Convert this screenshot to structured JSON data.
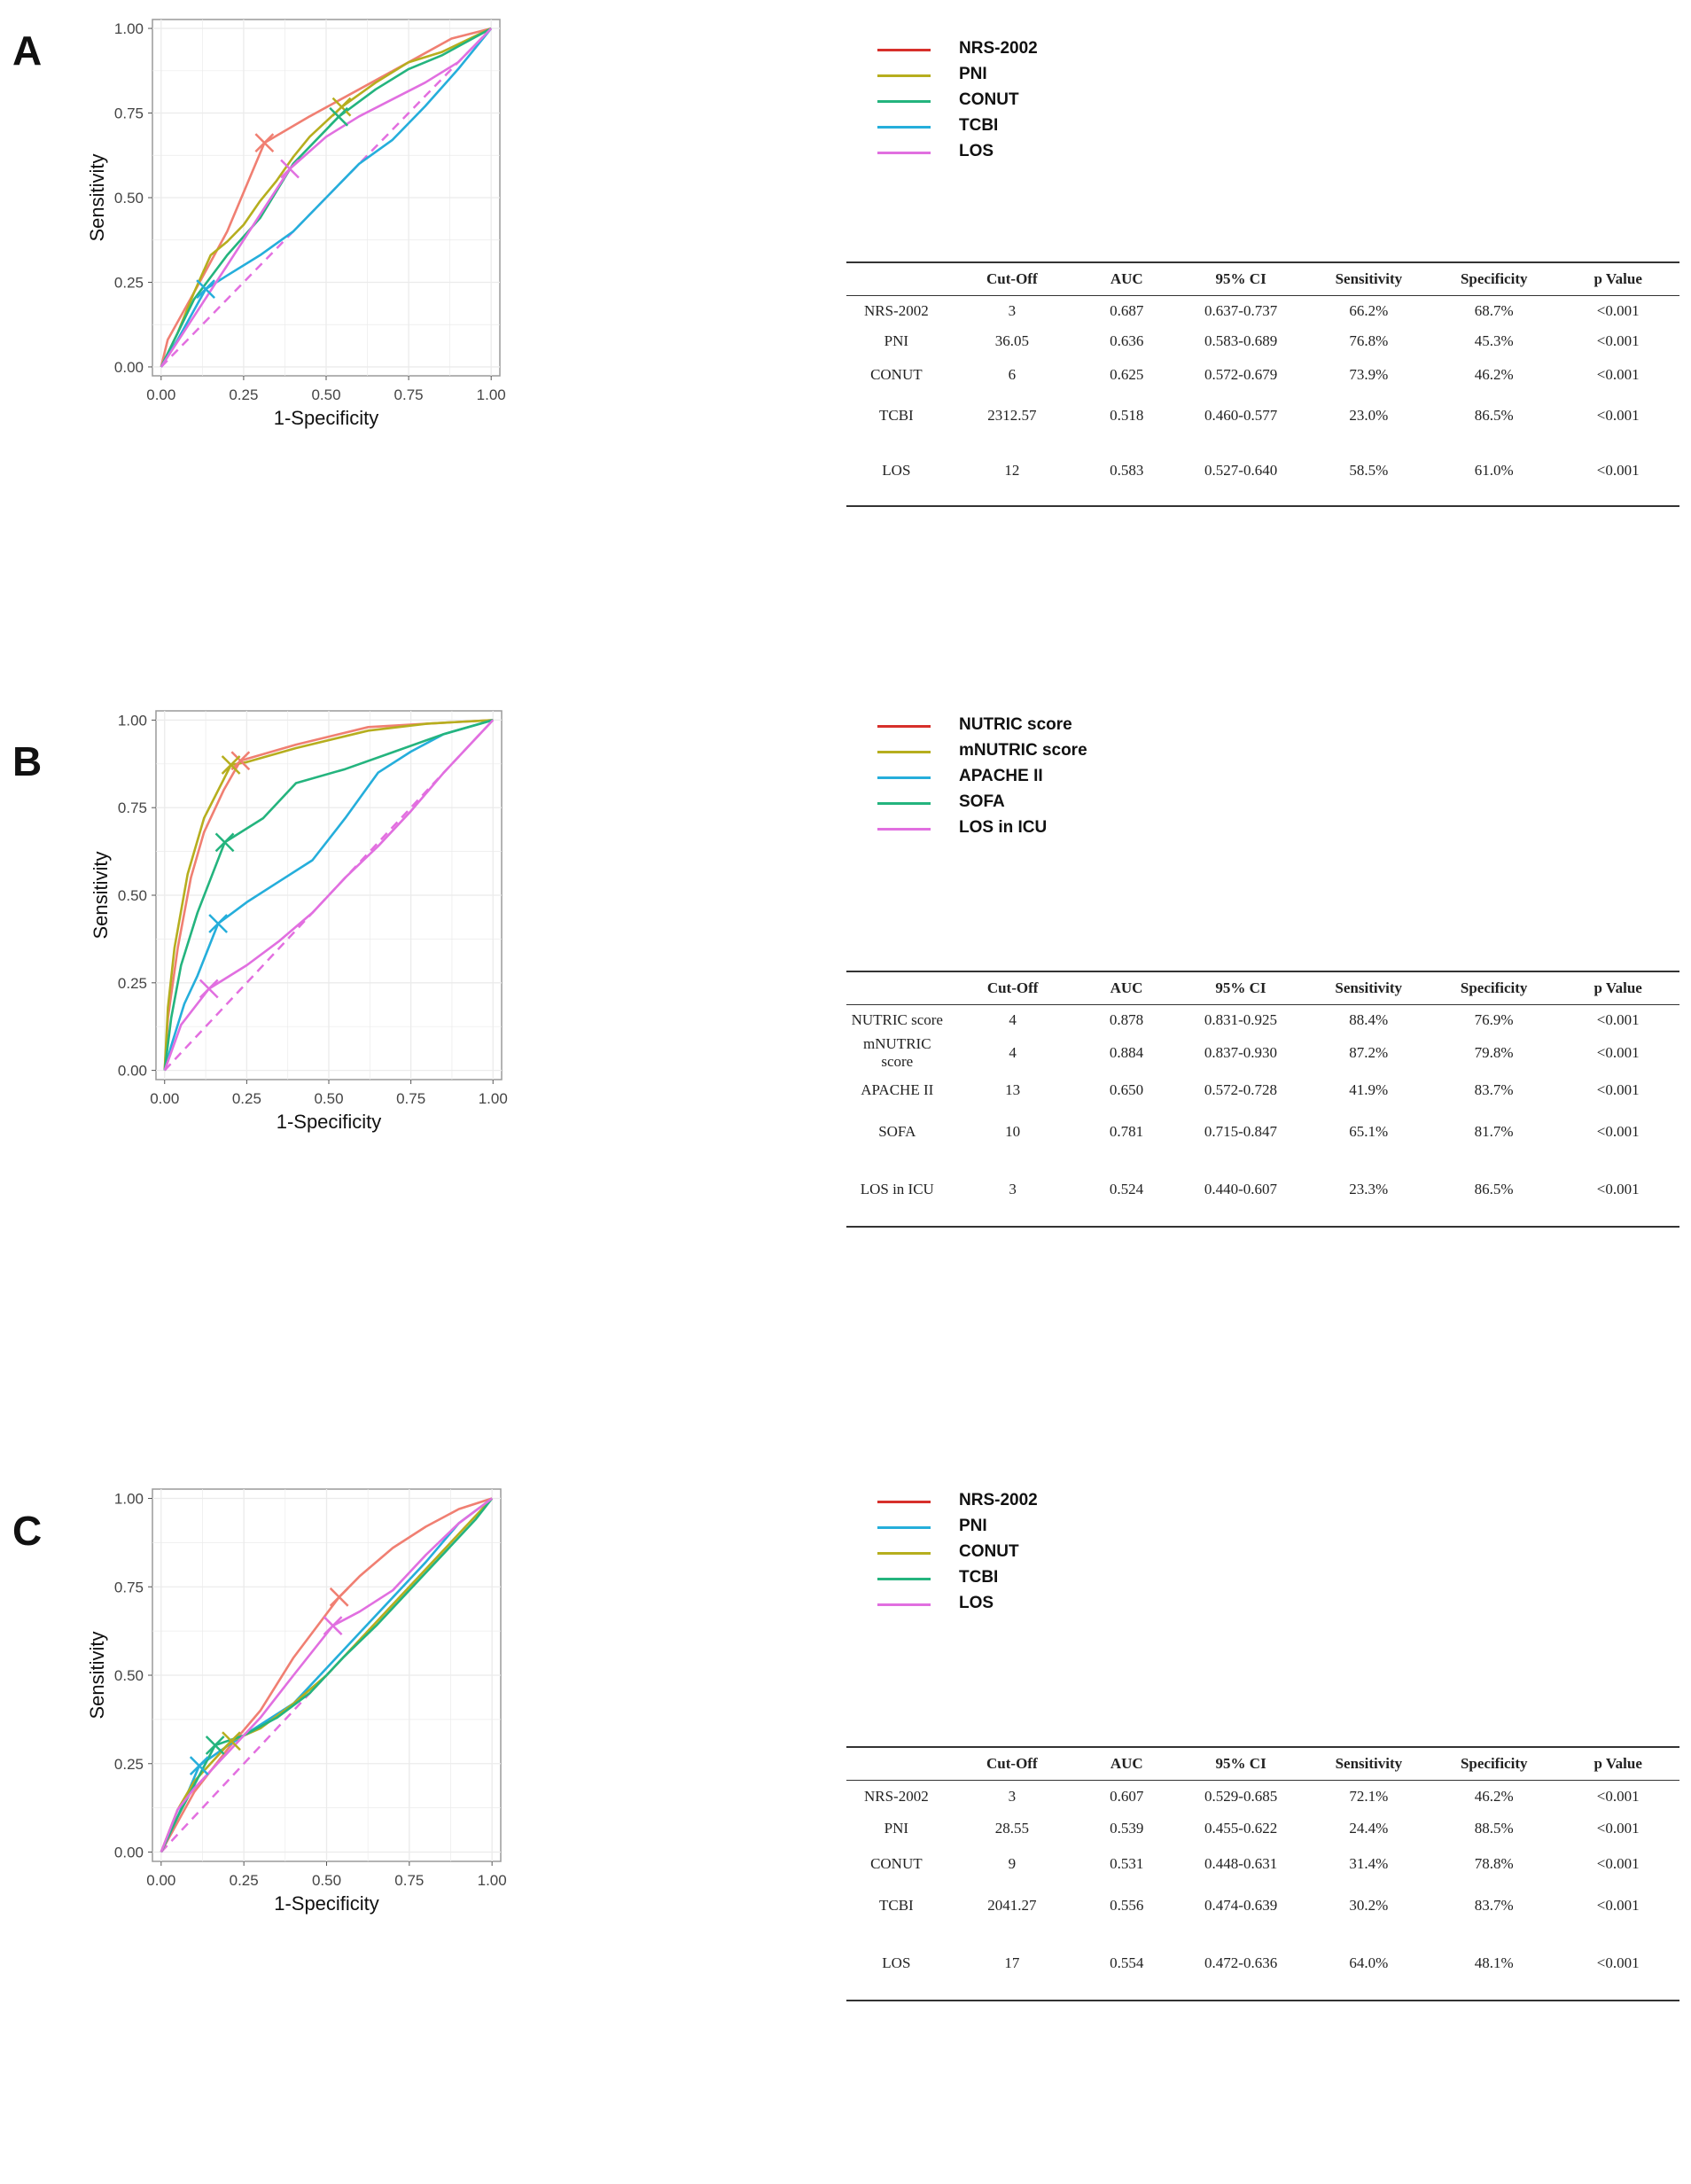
{
  "chart_data": [
    {
      "type": "line",
      "panel": "A",
      "xlabel": "1-Specificity",
      "ylabel": "Sensitivity",
      "xlim": [
        0,
        1
      ],
      "ylim": [
        0,
        1
      ],
      "xticks": [
        "0.00",
        "0.25",
        "0.50",
        "0.75",
        "1.00"
      ],
      "yticks": [
        "0.00",
        "0.25",
        "0.50",
        "0.75",
        "1.00"
      ],
      "grid": true,
      "legend_position": "top-right",
      "reference_line": {
        "x": [
          0,
          1
        ],
        "y": [
          0,
          1
        ],
        "style": "dashed",
        "color": "#E36FE0"
      },
      "series": [
        {
          "name": "NRS-2002",
          "color": "#F07F72",
          "legend_color": "#D7302B",
          "x": [
            0,
            0.02,
            0.1,
            0.2,
            0.313,
            0.45,
            0.6,
            0.75,
            0.88,
            1
          ],
          "y": [
            0,
            0.08,
            0.22,
            0.4,
            0.662,
            0.74,
            0.82,
            0.9,
            0.97,
            1
          ],
          "cutoff": [
            0.313,
            0.662
          ]
        },
        {
          "name": "PNI",
          "color": "#B6AE1E",
          "legend_color": "#B6AE1E",
          "x": [
            0,
            0.05,
            0.1,
            0.15,
            0.2,
            0.25,
            0.3,
            0.35,
            0.4,
            0.45,
            0.547,
            0.65,
            0.75,
            0.85,
            1
          ],
          "y": [
            0,
            0.1,
            0.22,
            0.33,
            0.37,
            0.42,
            0.49,
            0.55,
            0.62,
            0.68,
            0.768,
            0.84,
            0.9,
            0.93,
            1
          ],
          "cutoff": [
            0.547,
            0.768
          ]
        },
        {
          "name": "CONUT",
          "color": "#24B47E",
          "legend_color": "#24B47E",
          "x": [
            0,
            0.05,
            0.1,
            0.2,
            0.3,
            0.4,
            0.538,
            0.65,
            0.75,
            0.85,
            1
          ],
          "y": [
            0,
            0.1,
            0.2,
            0.33,
            0.44,
            0.6,
            0.739,
            0.82,
            0.88,
            0.92,
            1
          ],
          "cutoff": [
            0.538,
            0.739
          ]
        },
        {
          "name": "TCBI",
          "color": "#25AEDB",
          "legend_color": "#25AEDB",
          "x": [
            0,
            0.05,
            0.135,
            0.2,
            0.3,
            0.4,
            0.5,
            0.6,
            0.7,
            0.8,
            0.9,
            1
          ],
          "y": [
            0,
            0.08,
            0.23,
            0.27,
            0.33,
            0.4,
            0.5,
            0.6,
            0.67,
            0.77,
            0.88,
            1
          ],
          "cutoff": [
            0.135,
            0.23
          ]
        },
        {
          "name": "LOS",
          "color": "#E16FE0",
          "legend_color": "#E16FE0",
          "x": [
            0,
            0.1,
            0.2,
            0.3,
            0.39,
            0.5,
            0.6,
            0.7,
            0.8,
            0.9,
            1
          ],
          "y": [
            0,
            0.15,
            0.3,
            0.45,
            0.585,
            0.68,
            0.74,
            0.79,
            0.84,
            0.9,
            1
          ],
          "cutoff": [
            0.39,
            0.585
          ]
        }
      ],
      "table": {
        "columns": [
          "",
          "Cut-Off",
          "AUC",
          "95% CI",
          "Sensitivity",
          "Specificity",
          "p Value"
        ],
        "rows": [
          [
            "NRS-2002",
            "3",
            "0.687",
            "0.637-0.737",
            "66.2%",
            "68.7%",
            "<0.001"
          ],
          [
            "PNI",
            "36.05",
            "0.636",
            "0.583-0.689",
            "76.8%",
            "45.3%",
            "<0.001"
          ],
          [
            "CONUT",
            "6",
            "0.625",
            "0.572-0.679",
            "73.9%",
            "46.2%",
            "<0.001"
          ],
          [
            "TCBI",
            "2312.57",
            "0.518",
            "0.460-0.577",
            "23.0%",
            "86.5%",
            "<0.001"
          ],
          [
            "LOS",
            "12",
            "0.583",
            "0.527-0.640",
            "58.5%",
            "61.0%",
            "<0.001"
          ]
        ]
      }
    },
    {
      "type": "line",
      "panel": "B",
      "xlabel": "1-Specificity",
      "ylabel": "Sensitivity",
      "xlim": [
        0,
        1
      ],
      "ylim": [
        0,
        1
      ],
      "xticks": [
        "0.00",
        "0.25",
        "0.50",
        "0.75",
        "1.00"
      ],
      "yticks": [
        "0.00",
        "0.25",
        "0.50",
        "0.75",
        "1.00"
      ],
      "grid": true,
      "legend_position": "top-right",
      "reference_line": {
        "x": [
          0,
          1
        ],
        "y": [
          0,
          1
        ],
        "style": "dashed",
        "color": "#E36FE0"
      },
      "series": [
        {
          "name": "NUTRIC score",
          "color": "#F07F72",
          "legend_color": "#D7302B",
          "x": [
            0,
            0.01,
            0.04,
            0.08,
            0.12,
            0.18,
            0.231,
            0.4,
            0.62,
            0.8,
            1
          ],
          "y": [
            0,
            0.15,
            0.35,
            0.55,
            0.68,
            0.8,
            0.884,
            0.93,
            0.98,
            0.99,
            1
          ],
          "cutoff": [
            0.231,
            0.884
          ]
        },
        {
          "name": "mNUTRIC score",
          "color": "#B6AE1E",
          "legend_color": "#B6AE1E",
          "x": [
            0,
            0.01,
            0.03,
            0.07,
            0.12,
            0.202,
            0.25,
            0.4,
            0.62,
            0.8,
            1
          ],
          "y": [
            0,
            0.18,
            0.35,
            0.56,
            0.72,
            0.872,
            0.88,
            0.92,
            0.97,
            0.99,
            1
          ],
          "cutoff": [
            0.202,
            0.872
          ]
        },
        {
          "name": "APACHE II",
          "color": "#25AEDB",
          "legend_color": "#25AEDB",
          "x": [
            0,
            0.02,
            0.06,
            0.1,
            0.163,
            0.25,
            0.35,
            0.45,
            0.55,
            0.65,
            0.75,
            0.85,
            1
          ],
          "y": [
            0,
            0.07,
            0.19,
            0.27,
            0.419,
            0.48,
            0.54,
            0.6,
            0.72,
            0.85,
            0.91,
            0.96,
            1
          ],
          "cutoff": [
            0.163,
            0.419
          ]
        },
        {
          "name": "SOFA",
          "color": "#24B47E",
          "legend_color": "#24B47E",
          "x": [
            0,
            0.02,
            0.05,
            0.1,
            0.183,
            0.3,
            0.4,
            0.55,
            0.7,
            0.85,
            1
          ],
          "y": [
            0,
            0.15,
            0.3,
            0.45,
            0.651,
            0.72,
            0.82,
            0.86,
            0.91,
            0.96,
            1
          ],
          "cutoff": [
            0.183,
            0.651
          ]
        },
        {
          "name": "LOS in ICU",
          "color": "#E16FE0",
          "legend_color": "#E16FE0",
          "x": [
            0,
            0.05,
            0.135,
            0.25,
            0.35,
            0.45,
            0.55,
            0.65,
            0.75,
            0.85,
            0.95,
            1
          ],
          "y": [
            0,
            0.13,
            0.233,
            0.3,
            0.37,
            0.45,
            0.55,
            0.64,
            0.74,
            0.85,
            0.95,
            1
          ],
          "cutoff": [
            0.135,
            0.233
          ]
        }
      ],
      "table": {
        "columns": [
          "",
          "Cut-Off",
          "AUC",
          "95% CI",
          "Sensitivity",
          "Specificity",
          "p Value"
        ],
        "rows": [
          [
            "NUTRIC score",
            "4",
            "0.878",
            "0.831-0.925",
            "88.4%",
            "76.9%",
            "<0.001"
          ],
          [
            "mNUTRIC score",
            "4",
            "0.884",
            "0.837-0.930",
            "87.2%",
            "79.8%",
            "<0.001"
          ],
          [
            "APACHE II",
            "13",
            "0.650",
            "0.572-0.728",
            "41.9%",
            "83.7%",
            "<0.001"
          ],
          [
            "SOFA",
            "10",
            "0.781",
            "0.715-0.847",
            "65.1%",
            "81.7%",
            "<0.001"
          ],
          [
            "LOS in ICU",
            "3",
            "0.524",
            "0.440-0.607",
            "23.3%",
            "86.5%",
            "<0.001"
          ]
        ]
      }
    },
    {
      "type": "line",
      "panel": "C",
      "xlabel": "1-Specificity",
      "ylabel": "Sensitivity",
      "xlim": [
        0,
        1
      ],
      "ylim": [
        0,
        1
      ],
      "xticks": [
        "0.00",
        "0.25",
        "0.50",
        "0.75",
        "1.00"
      ],
      "yticks": [
        "0.00",
        "0.25",
        "0.50",
        "0.75",
        "1.00"
      ],
      "grid": true,
      "legend_position": "top-right",
      "reference_line": {
        "x": [
          0,
          1
        ],
        "y": [
          0,
          1
        ],
        "style": "dashed",
        "color": "#E36FE0"
      },
      "series": [
        {
          "name": "NRS-2002",
          "color": "#F07F72",
          "legend_color": "#D7302B",
          "x": [
            0,
            0.1,
            0.2,
            0.3,
            0.4,
            0.538,
            0.6,
            0.7,
            0.8,
            0.9,
            1
          ],
          "y": [
            0,
            0.17,
            0.29,
            0.4,
            0.55,
            0.721,
            0.78,
            0.86,
            0.92,
            0.97,
            1
          ],
          "cutoff": [
            0.538,
            0.721
          ]
        },
        {
          "name": "PNI",
          "color": "#25AEDB",
          "legend_color": "#25AEDB",
          "x": [
            0,
            0.05,
            0.115,
            0.2,
            0.3,
            0.4,
            0.5,
            0.6,
            0.7,
            0.8,
            0.9,
            1
          ],
          "y": [
            0,
            0.1,
            0.244,
            0.3,
            0.36,
            0.42,
            0.52,
            0.62,
            0.72,
            0.82,
            0.93,
            1
          ],
          "cutoff": [
            0.115,
            0.244
          ]
        },
        {
          "name": "CONUT",
          "color": "#B6AE1E",
          "legend_color": "#B6AE1E",
          "x": [
            0,
            0.05,
            0.1,
            0.212,
            0.3,
            0.4,
            0.5,
            0.6,
            0.7,
            0.8,
            0.9,
            1
          ],
          "y": [
            0,
            0.12,
            0.2,
            0.314,
            0.35,
            0.42,
            0.5,
            0.6,
            0.7,
            0.8,
            0.9,
            1
          ],
          "cutoff": [
            0.212,
            0.314
          ]
        },
        {
          "name": "TCBI",
          "color": "#24B47E",
          "legend_color": "#24B47E",
          "x": [
            0,
            0.05,
            0.163,
            0.25,
            0.35,
            0.45,
            0.55,
            0.65,
            0.75,
            0.85,
            0.95,
            1
          ],
          "y": [
            0,
            0.1,
            0.302,
            0.33,
            0.38,
            0.45,
            0.55,
            0.64,
            0.74,
            0.84,
            0.94,
            1
          ],
          "cutoff": [
            0.163,
            0.302
          ]
        },
        {
          "name": "LOS",
          "color": "#E16FE0",
          "legend_color": "#E16FE0",
          "x": [
            0,
            0.05,
            0.1,
            0.2,
            0.3,
            0.4,
            0.519,
            0.6,
            0.7,
            0.8,
            0.9,
            1
          ],
          "y": [
            0,
            0.12,
            0.18,
            0.28,
            0.38,
            0.5,
            0.64,
            0.68,
            0.74,
            0.84,
            0.93,
            1
          ],
          "cutoff": [
            0.519,
            0.64
          ]
        }
      ],
      "table": {
        "columns": [
          "",
          "Cut-Off",
          "AUC",
          "95% CI",
          "Sensitivity",
          "Specificity",
          "p Value"
        ],
        "rows": [
          [
            "NRS-2002",
            "3",
            "0.607",
            "0.529-0.685",
            "72.1%",
            "46.2%",
            "<0.001"
          ],
          [
            "PNI",
            "28.55",
            "0.539",
            "0.455-0.622",
            "24.4%",
            "88.5%",
            "<0.001"
          ],
          [
            "CONUT",
            "9",
            "0.531",
            "0.448-0.631",
            "31.4%",
            "78.8%",
            "<0.001"
          ],
          [
            "TCBI",
            "2041.27",
            "0.556",
            "0.474-0.639",
            "30.2%",
            "83.7%",
            "<0.001"
          ],
          [
            "LOS",
            "17",
            "0.554",
            "0.472-0.636",
            "64.0%",
            "48.1%",
            "<0.001"
          ]
        ]
      }
    }
  ],
  "panels": {
    "a": {
      "letter": "A"
    },
    "b": {
      "letter": "B"
    },
    "c": {
      "letter": "C"
    }
  }
}
